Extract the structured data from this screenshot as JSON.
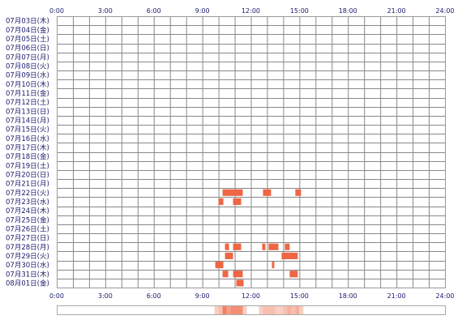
{
  "chart_data": {
    "type": "heatmap",
    "x_ticks": [
      "0:00",
      "3:00",
      "6:00",
      "9:00",
      "12:00",
      "15:00",
      "18:00",
      "21:00",
      "24:00"
    ],
    "xlim": [
      0,
      24
    ],
    "rows": [
      "07月03日(木)",
      "07月04日(金)",
      "07月05日(土)",
      "07月06日(日)",
      "07月07日(月)",
      "07月08日(火)",
      "07月09日(水)",
      "07月10日(木)",
      "07月11日(金)",
      "07月12日(土)",
      "07月13日(日)",
      "07月14日(月)",
      "07月15日(火)",
      "07月16日(水)",
      "07月17日(木)",
      "07月18日(金)",
      "07月19日(土)",
      "07月20日(日)",
      "07月21日(月)",
      "07月22日(火)",
      "07月23日(水)",
      "07月24日(木)",
      "07月25日(金)",
      "07月26日(土)",
      "07月27日(日)",
      "07月28日(月)",
      "07月29日(火)",
      "07月30日(水)",
      "07月31日(木)",
      "08月01日(金)"
    ],
    "grid": true,
    "cells": [
      {
        "row": 19,
        "start": 10.25,
        "end": 10.75
      },
      {
        "row": 19,
        "start": 10.75,
        "end": 11.5
      },
      {
        "row": 19,
        "start": 12.75,
        "end": 13.25
      },
      {
        "row": 19,
        "start": 14.75,
        "end": 15.1
      },
      {
        "row": 20,
        "start": 10.0,
        "end": 10.3
      },
      {
        "row": 20,
        "start": 10.9,
        "end": 11.4
      },
      {
        "row": 25,
        "start": 10.4,
        "end": 10.65
      },
      {
        "row": 25,
        "start": 10.9,
        "end": 11.4
      },
      {
        "row": 25,
        "start": 12.7,
        "end": 12.9
      },
      {
        "row": 25,
        "start": 13.1,
        "end": 13.7
      },
      {
        "row": 25,
        "start": 14.1,
        "end": 14.4
      },
      {
        "row": 26,
        "start": 10.4,
        "end": 10.9
      },
      {
        "row": 26,
        "start": 13.9,
        "end": 14.9
      },
      {
        "row": 27,
        "start": 9.8,
        "end": 10.3
      },
      {
        "row": 27,
        "start": 13.3,
        "end": 13.45
      },
      {
        "row": 28,
        "start": 10.25,
        "end": 10.6
      },
      {
        "row": 28,
        "start": 10.9,
        "end": 11.5
      },
      {
        "row": 28,
        "start": 14.4,
        "end": 14.9
      },
      {
        "row": 29,
        "start": 11.1,
        "end": 11.55
      }
    ],
    "colors": {
      "cell": "#ee6644",
      "grid": "#888888",
      "frame": "#9a9a9a",
      "text": "#1a1a6b",
      "summary_high": "#f08060",
      "summary_low": "#fbd8cc"
    }
  }
}
